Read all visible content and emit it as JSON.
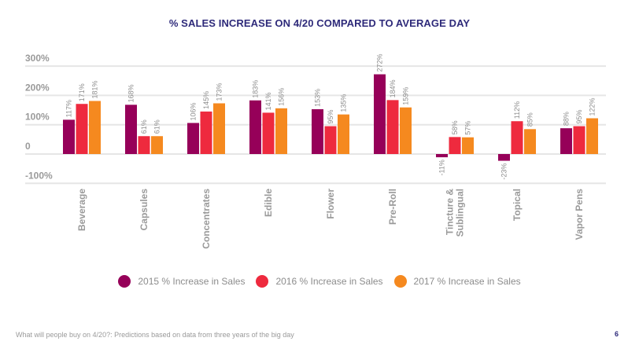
{
  "page": {
    "footer": "What will people buy on 4/20?: Predictions based on data from three years of the big day",
    "page_number": "6"
  },
  "chart_data": {
    "type": "bar",
    "title": "% SALES INCREASE ON 4/20 COMPARED TO AVERAGE DAY",
    "xlabel": "",
    "ylabel": "",
    "ylim": [
      -100,
      300
    ],
    "yticks": [
      300,
      200,
      100,
      0,
      -100
    ],
    "ytick_labels": [
      "300%",
      "200%",
      "100%",
      "0",
      "-100%"
    ],
    "grid": true,
    "legend_position": "bottom",
    "categories": [
      "Beverage",
      "Capsules",
      "Concentrates",
      "Edible",
      "Flower",
      "Pre-Roll",
      "Tincture & Sublingual",
      "Topical",
      "Vapor Pens"
    ],
    "category_lines": [
      [
        "Beverage"
      ],
      [
        "Capsules"
      ],
      [
        "Concentrates"
      ],
      [
        "Edible"
      ],
      [
        "Flower"
      ],
      [
        "Pre-Roll"
      ],
      [
        "Tincture &",
        "Sublingual"
      ],
      [
        "Topical"
      ],
      [
        "Vapor Pens"
      ]
    ],
    "series": [
      {
        "name": "2015 % Increase in Sales",
        "color": "#960059",
        "values": [
          117,
          168,
          106,
          183,
          153,
          272,
          -11,
          -23,
          88
        ]
      },
      {
        "name": "2016 % Increase in Sales",
        "color": "#ee2a3e",
        "values": [
          171,
          61,
          145,
          141,
          95,
          184,
          58,
          112,
          95
        ]
      },
      {
        "name": "2017 % Increase in Sales",
        "color": "#f5891f",
        "values": [
          181,
          61,
          173,
          156,
          135,
          159,
          57,
          85,
          122
        ]
      }
    ],
    "value_suffix": "%"
  }
}
